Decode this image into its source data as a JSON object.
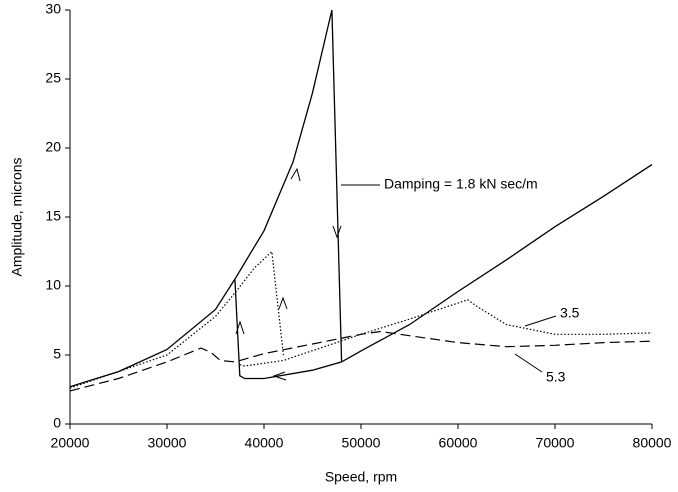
{
  "chart_data": {
    "type": "line",
    "x_label": "Speed, rpm",
    "y_label": "Amplitude, microns",
    "xlim": [
      20000,
      80000
    ],
    "xticks": [
      20000,
      30000,
      40000,
      50000,
      60000,
      70000,
      80000
    ],
    "ylim": [
      0,
      30
    ],
    "yticks": [
      0,
      5,
      10,
      15,
      20,
      25,
      30
    ],
    "grid": false,
    "series": [
      {
        "name": "Damping = 1.8 kN sec/m",
        "color": "#000000",
        "style": "solid",
        "x": [
          20000,
          25000,
          30000,
          35000,
          37000,
          40000,
          43000,
          45000,
          47000,
          48000,
          null,
          37000,
          37500,
          38000,
          40000,
          45000,
          48000,
          50000,
          55000,
          60000,
          65000,
          70000,
          75000,
          80000
        ],
        "values": [
          2.7,
          3.8,
          5.4,
          8.3,
          10.5,
          14,
          19,
          24,
          30,
          4.5,
          null,
          10.5,
          3.5,
          3.3,
          3.3,
          3.9,
          4.5,
          5.3,
          7.2,
          9.6,
          11.9,
          14.3,
          16.5,
          18.8
        ]
      },
      {
        "name": "3.5",
        "color": "#000000",
        "style": "dotted",
        "x": [
          20000,
          30000,
          35000,
          37000,
          39000,
          40800,
          42000,
          null,
          37500,
          38000,
          42000,
          50000,
          55000,
          61000,
          62000,
          65000,
          70000,
          75000,
          80000
        ],
        "values": [
          2.6,
          5,
          7.8,
          9.5,
          11.3,
          12.5,
          5,
          null,
          4.3,
          4.2,
          4.6,
          6.5,
          7.6,
          9,
          8.5,
          7.2,
          6.5,
          6.5,
          6.6
        ]
      },
      {
        "name": "5.3",
        "color": "#000000",
        "style": "dashed",
        "x": [
          20000,
          25000,
          30000,
          33500,
          34500,
          35500,
          37000,
          40000,
          45000,
          50000,
          52000,
          55000,
          60000,
          65000,
          70000,
          75000,
          80000
        ],
        "values": [
          2.4,
          3.3,
          4.5,
          5.5,
          5.2,
          4.6,
          4.5,
          5.1,
          5.8,
          6.5,
          6.7,
          6.4,
          5.9,
          5.6,
          5.7,
          5.9,
          6.0
        ]
      }
    ]
  }
}
